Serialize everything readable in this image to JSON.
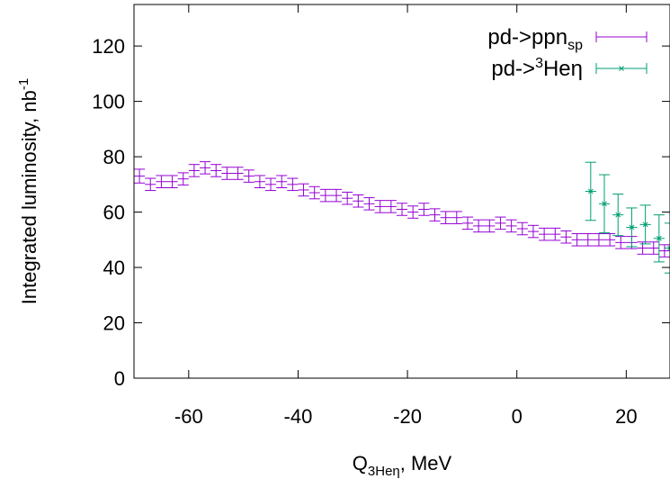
{
  "chart_data": {
    "type": "scatter",
    "xlim": [
      -70,
      28
    ],
    "ylim": [
      0,
      135
    ],
    "xticks": [
      -60,
      -40,
      -20,
      0,
      20
    ],
    "yticks": [
      0,
      20,
      40,
      60,
      80,
      100,
      120
    ],
    "xticklabels": [
      "-60",
      "-40",
      "-20",
      "0",
      "20"
    ],
    "yticklabels": [
      "0",
      "20",
      "40",
      "60",
      "80",
      "100",
      "120"
    ],
    "xlabel": {
      "base": "Q",
      "sub": "3Heη",
      "rest": ", MeV"
    },
    "ylabel": {
      "text": "Integrated luminosity, nb",
      "sup": "-1"
    },
    "legend_position": "top-right",
    "grid": false,
    "series": [
      {
        "name": {
          "text": "pd->ppn",
          "sub": "sp",
          "pre_sup": "",
          "post": ""
        },
        "color": "#9400d3",
        "marker": "plus",
        "x_half_width": 1.0,
        "x": [
          -69,
          -67,
          -65,
          -63,
          -61,
          -59,
          -57,
          -55,
          -53,
          -51,
          -49,
          -47,
          -45,
          -43,
          -41,
          -39,
          -37,
          -35,
          -33,
          -31,
          -29,
          -27,
          -25,
          -23,
          -21,
          -19,
          -17,
          -15,
          -13,
          -11,
          -9,
          -7,
          -5,
          -3,
          -1,
          1,
          3,
          5,
          7,
          9,
          11,
          13,
          15,
          17,
          19,
          21,
          23,
          25,
          27
        ],
        "y": [
          73,
          70,
          71,
          71,
          72,
          75,
          76,
          75,
          74,
          74,
          73,
          71,
          70,
          71,
          70,
          68,
          67,
          66,
          66,
          65,
          64,
          63,
          62,
          62,
          61,
          60,
          61,
          59,
          58,
          58,
          56,
          55,
          55,
          56,
          55,
          54,
          53,
          52,
          52,
          51,
          50,
          50,
          50,
          50,
          49,
          49,
          47,
          47,
          46
        ],
        "yerr": [
          2.5,
          2.2,
          2.2,
          2.2,
          2.2,
          2.2,
          2.2,
          2.2,
          2.2,
          2.2,
          2.2,
          2.2,
          2.2,
          2.2,
          2.2,
          2.2,
          2.2,
          2.2,
          2.2,
          2.2,
          2.2,
          2.2,
          2.2,
          2.2,
          2.2,
          2.2,
          2.2,
          2.2,
          2.2,
          2.2,
          2.2,
          2.2,
          2.2,
          2.2,
          2.2,
          2.2,
          2.2,
          2.2,
          2.2,
          2.2,
          2.2,
          2.2,
          2.2,
          2.2,
          2.2,
          2.2,
          2.2,
          2.2,
          2.2
        ]
      },
      {
        "name": {
          "text": "",
          "sub": "",
          "pre": "pd->",
          "pre_sup": "3",
          "post": "Heη"
        },
        "color": "#009e73",
        "marker": "cross",
        "x_half_width": 1.0,
        "x": [
          13.5,
          16,
          18.5,
          21,
          23.5,
          26,
          28
        ],
        "y": [
          67.5,
          63,
          59,
          54.5,
          55.5,
          50.5,
          47
        ],
        "yerr": [
          10.5,
          10.5,
          7.5,
          7,
          7,
          8.5,
          9
        ]
      }
    ]
  }
}
